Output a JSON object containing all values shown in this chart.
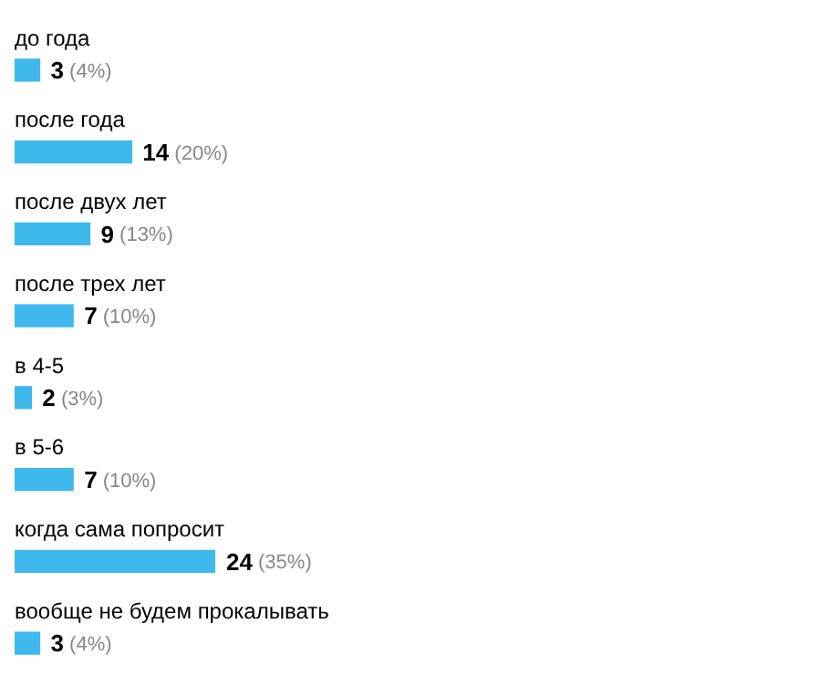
{
  "chart_data": {
    "type": "bar",
    "orientation": "horizontal",
    "categories": [
      "до года",
      "после года",
      "после двух лет",
      "после трех лет",
      "в 4-5",
      "в 5-6",
      "когда сама попросит",
      "вообще не будем прокалывать"
    ],
    "values": [
      3,
      14,
      9,
      7,
      2,
      7,
      24,
      3
    ],
    "value_labels": [
      "3 (4%)",
      "14 (20%)",
      "9 (13%)",
      "7 (10%)",
      "2 (3%)",
      "7 (10%)",
      "24 (35%)",
      "3 (4%)"
    ],
    "color": "#3fb8ee",
    "legend": false
  }
}
